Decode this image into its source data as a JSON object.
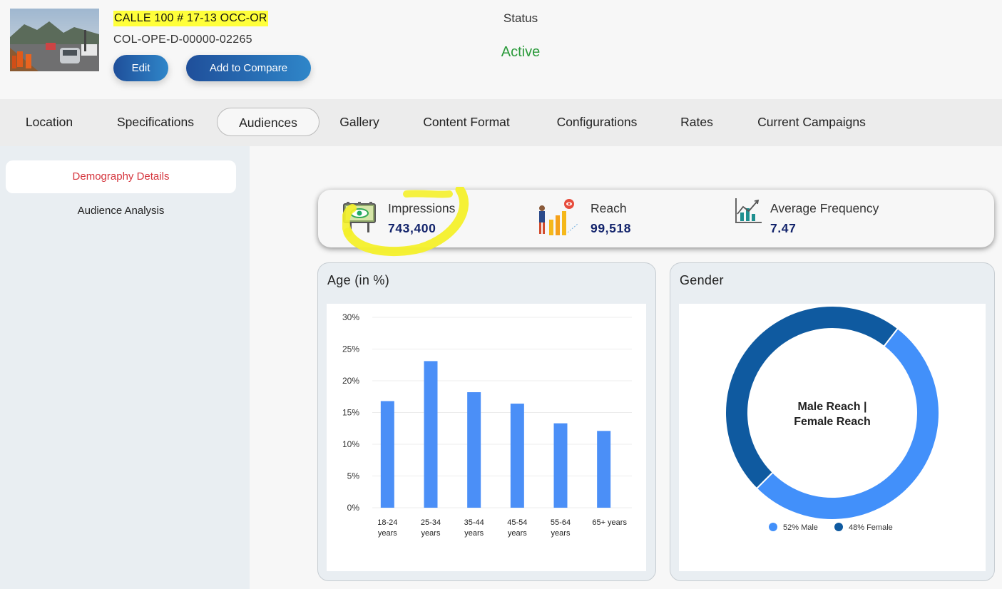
{
  "header": {
    "site_title": "CALLE 100 # 17-13 OCC-OR",
    "site_code": "COL-OPE-D-00000-02265",
    "edit_label": "Edit",
    "compare_label": "Add to Compare",
    "status_label": "Status",
    "status_value": "Active",
    "status_color": "#2a9a3a"
  },
  "tabs": [
    {
      "label": "Location"
    },
    {
      "label": "Specifications"
    },
    {
      "label": "Audiences",
      "active": true
    },
    {
      "label": "Gallery"
    },
    {
      "label": "Content Format"
    },
    {
      "label": "Configurations"
    },
    {
      "label": "Rates"
    },
    {
      "label": "Current Campaigns"
    }
  ],
  "sidebar": {
    "items": [
      {
        "label": "Demography Details",
        "active": true
      },
      {
        "label": "Audience Analysis"
      }
    ]
  },
  "metrics": {
    "impressions": {
      "label": "Impressions",
      "value": "743,400",
      "icon": "billboard-eye-icon"
    },
    "reach": {
      "label": "Reach",
      "value": "99,518",
      "icon": "reach-person-icon"
    },
    "frequency": {
      "label": "Average Frequency",
      "value": "7.47",
      "icon": "bar-chart-icon"
    }
  },
  "age_card": {
    "title": "Age (in %)"
  },
  "gender_card": {
    "title": "Gender"
  },
  "chart_data": [
    {
      "type": "bar",
      "title": "Age (in %)",
      "categories": [
        "18-24 years",
        "25-34 years",
        "35-44 years",
        "45-54 years",
        "55-64 years",
        "65+ years"
      ],
      "values": [
        16.8,
        23.1,
        18.2,
        16.4,
        13.3,
        12.1
      ],
      "ylim": [
        0,
        30
      ],
      "yticks": [
        "0%",
        "5%",
        "10%",
        "15%",
        "20%",
        "25%",
        "30%"
      ],
      "color": "#4b8ff7",
      "grid": true
    },
    {
      "type": "pie",
      "title": "Gender",
      "center_label": "Male Reach | Female Reach",
      "labels": [
        "52% Male",
        "48% Female"
      ],
      "values": [
        52,
        48
      ],
      "colors": [
        "#4290fa",
        "#0f5aa0"
      ],
      "legend": "bottom"
    }
  ]
}
